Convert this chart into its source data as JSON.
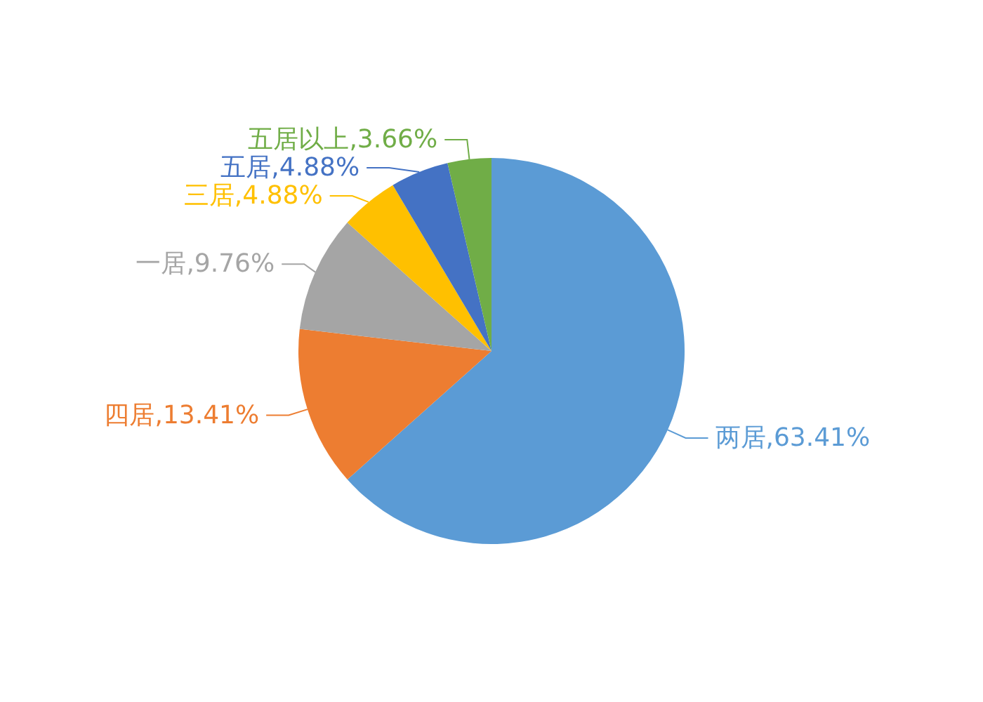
{
  "chart_data": {
    "type": "pie",
    "categories": [
      "两居",
      "四居",
      "一居",
      "三居",
      "五居",
      "五居以上"
    ],
    "values": [
      63.41,
      13.41,
      9.76,
      4.88,
      4.88,
      3.66
    ],
    "value_labels": [
      "63.41%",
      "13.41%",
      "9.76%",
      "4.88%",
      "4.88%",
      "3.66%"
    ],
    "colors": [
      "#5b9bd5",
      "#ed7d31",
      "#a5a5a5",
      "#ffc000",
      "#4472c4",
      "#70ad47"
    ],
    "legend": false
  }
}
